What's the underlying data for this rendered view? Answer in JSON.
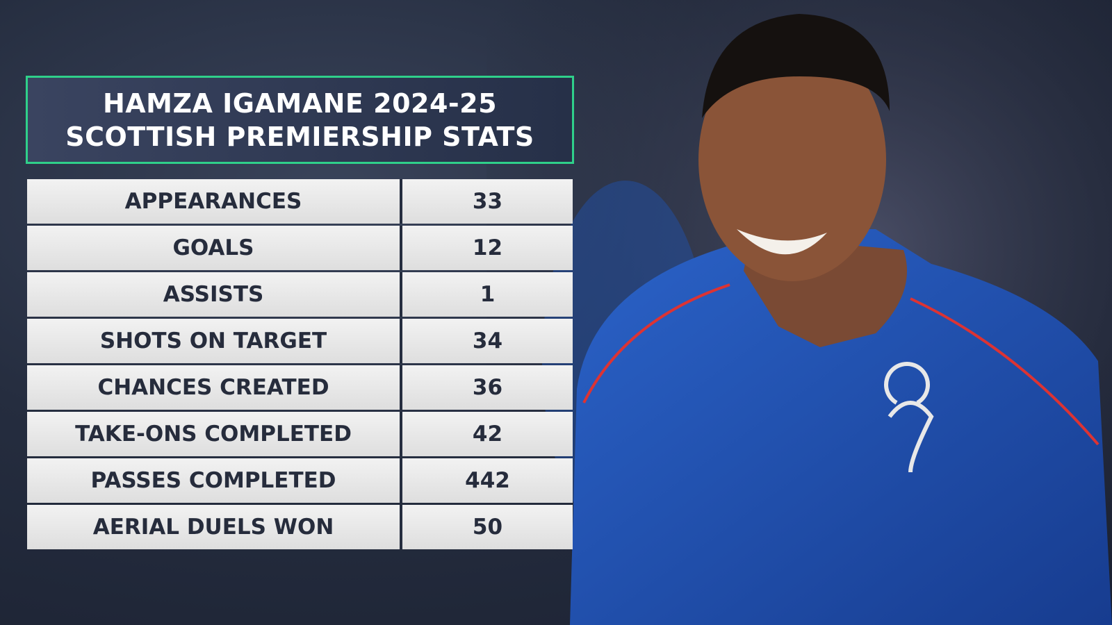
{
  "header": {
    "title_lines": [
      "HAMZA IGAMANE 2024-25",
      "SCOTTISH PREMIERSHIP STATS"
    ]
  },
  "table": {
    "rows": [
      [
        "APPEARANCES",
        33
      ],
      [
        "GOALS",
        12
      ],
      [
        "ASSISTS",
        1
      ],
      [
        "SHOTS ON TARGET",
        34
      ],
      [
        "CHANCES CREATED",
        36
      ],
      [
        "TAKE-ONS COMPLETED",
        42
      ],
      [
        "PASSES COMPLETED",
        442
      ],
      [
        "AERIAL DUELS WON",
        50
      ]
    ]
  }
}
